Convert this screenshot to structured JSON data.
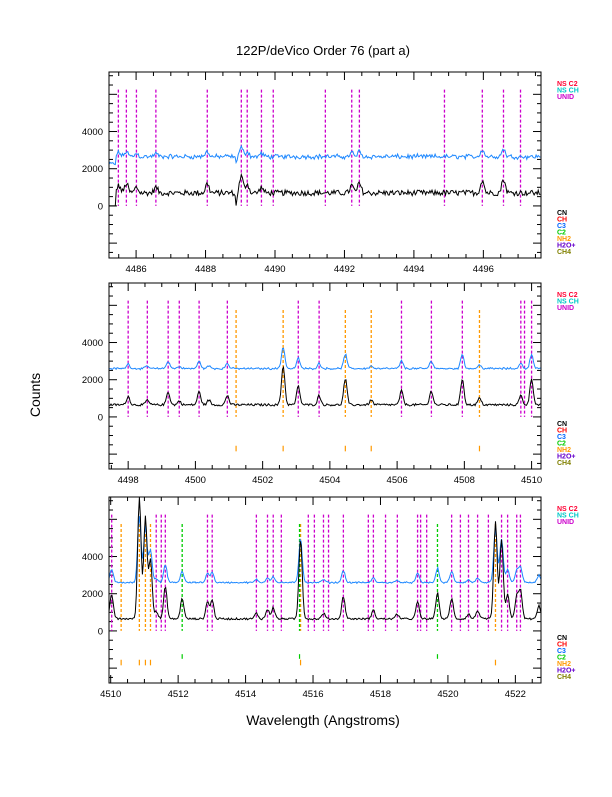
{
  "chart_data": {
    "type": "line",
    "title": "122P/deVico Order 76 (part a)",
    "xlabel": "Wavelength (Angstroms)",
    "ylabel": "Counts",
    "legend_top": [
      {
        "label": "NS C2",
        "color": "#ff0033"
      },
      {
        "label": "NS CH",
        "color": "#00c8c8"
      },
      {
        "label": "UNID",
        "color": "#cc00cc"
      }
    ],
    "legend_bottom": [
      {
        "label": "CN",
        "color": "#000000"
      },
      {
        "label": "CH",
        "color": "#ff0000"
      },
      {
        "label": "C3",
        "color": "#0066ff"
      },
      {
        "label": "C2",
        "color": "#00cc00"
      },
      {
        "label": "NH2",
        "color": "#ff9900"
      },
      {
        "label": "H2O+",
        "color": "#6600cc"
      },
      {
        "label": "CH4",
        "color": "#808000"
      }
    ],
    "series_colors": {
      "spectrum": "#000000",
      "offset_spectrum": "#1e88ff"
    },
    "panels": [
      {
        "xlim": [
          4485.22,
          4497.66
        ],
        "ylim": [
          -2800,
          7200
        ],
        "xticks": [
          4486,
          4488,
          4490,
          4492,
          4494,
          4496
        ],
        "yticks": [
          0,
          2000,
          4000
        ],
        "baseline": 700,
        "offset": 1950,
        "noise": 150,
        "start_zero_until": 4485.4,
        "peaks": [
          [
            4485.5,
            400
          ],
          [
            4485.72,
            500
          ],
          [
            4486.01,
            300
          ],
          [
            4486.57,
            300
          ],
          [
            4488.05,
            500
          ],
          [
            4489.03,
            900
          ],
          [
            4489.2,
            500
          ],
          [
            4489.61,
            300
          ],
          [
            4492.21,
            400
          ],
          [
            4492.43,
            500
          ],
          [
            4495.97,
            700
          ],
          [
            4496.58,
            750
          ]
        ],
        "dips": [
          [
            4488.88,
            700
          ]
        ],
        "lines": {
          "UNID": [
            4485.49,
            4485.72,
            4486.01,
            4486.57,
            4488.05,
            4489.03,
            4489.2,
            4489.61,
            4489.95,
            4491.45,
            4492.21,
            4492.43,
            4494.88,
            4495.97,
            4496.58,
            4497.07
          ]
        }
      },
      {
        "xlim": [
          4497.43,
          4510.28
        ],
        "ylim": [
          -2800,
          7200
        ],
        "xticks": [
          4498,
          4500,
          4502,
          4504,
          4506,
          4508,
          4510
        ],
        "yticks": [
          0,
          2000,
          4000
        ],
        "baseline": 650,
        "offset": 1950,
        "noise": 60,
        "peaks": [
          [
            4498.0,
            450
          ],
          [
            4498.57,
            250
          ],
          [
            4499.19,
            700
          ],
          [
            4499.52,
            200
          ],
          [
            4500.11,
            700
          ],
          [
            4500.4,
            250
          ],
          [
            4500.95,
            500
          ],
          [
            4502.61,
            2100
          ],
          [
            4503.06,
            1000
          ],
          [
            4503.68,
            500
          ],
          [
            4504.46,
            1400
          ],
          [
            4505.23,
            250
          ],
          [
            4506.13,
            750
          ],
          [
            4507.02,
            750
          ],
          [
            4507.94,
            1400
          ],
          [
            4508.45,
            350
          ],
          [
            4509.68,
            500
          ],
          [
            4510.0,
            1400
          ]
        ],
        "dips": [],
        "lines": {
          "UNID": [
            4498.0,
            4498.57,
            4499.19,
            4499.52,
            4500.11,
            4500.95,
            4503.06,
            4503.68,
            4506.13,
            4507.02,
            4507.94,
            4509.68,
            4509.79,
            4510.0
          ],
          "NH2": [
            4501.21,
            4502.61,
            4504.46,
            4505.23,
            4508.45
          ]
        }
      },
      {
        "xlim": [
          4509.95,
          4522.76
        ],
        "ylim": [
          -2800,
          7200
        ],
        "xticks": [
          4510,
          4512,
          4514,
          4516,
          4518,
          4520,
          4522
        ],
        "yticks": [
          0,
          2000,
          4000
        ],
        "baseline": 650,
        "offset": 1950,
        "noise": 50,
        "peaks": [
          [
            4510.03,
            1300
          ],
          [
            4510.85,
            6500
          ],
          [
            4511.03,
            5500
          ],
          [
            4511.18,
            3200
          ],
          [
            4511.35,
            400
          ],
          [
            4511.62,
            1700
          ],
          [
            4512.12,
            1100
          ],
          [
            4512.87,
            900
          ],
          [
            4513.01,
            1000
          ],
          [
            4514.32,
            300
          ],
          [
            4514.65,
            500
          ],
          [
            4514.82,
            600
          ],
          [
            4515.63,
            4300
          ],
          [
            4516.31,
            300
          ],
          [
            4516.9,
            1200
          ],
          [
            4517.79,
            450
          ],
          [
            4518.5,
            250
          ],
          [
            4519.1,
            900
          ],
          [
            4519.69,
            1400
          ],
          [
            4520.11,
            1100
          ],
          [
            4520.61,
            250
          ],
          [
            4520.88,
            450
          ],
          [
            4521.41,
            5200
          ],
          [
            4521.59,
            4200
          ],
          [
            4521.77,
            1300
          ],
          [
            4522.04,
            1200
          ],
          [
            4522.15,
            1500
          ],
          [
            4522.7,
            700
          ]
        ],
        "dips": [],
        "lines": {
          "UNID": [
            4510.03,
            4511.35,
            4511.5,
            4511.62,
            4512.87,
            4513.01,
            4514.32,
            4514.65,
            4514.82,
            4515.06,
            4515.86,
            4516.04,
            4516.31,
            4516.46,
            4516.9,
            4517.64,
            4517.79,
            4518.15,
            4518.5,
            4519.1,
            4519.19,
            4519.37,
            4520.11,
            4520.37,
            4520.61,
            4520.88,
            4521.2,
            4521.59,
            4521.77,
            4522.04,
            4522.15
          ],
          "NH2": [
            4510.31,
            4510.85,
            4511.03,
            4511.18,
            4515.63,
            4521.41
          ],
          "C2": [
            4512.12,
            4515.6,
            4519.69
          ]
        }
      }
    ]
  }
}
